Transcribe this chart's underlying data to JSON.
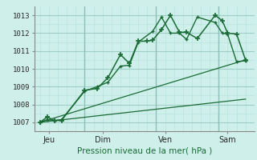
{
  "title": "",
  "xlabel": "Pression niveau de la mer( hPa )",
  "bg_color": "#cff0ea",
  "grid_color_minor": "#b8e4de",
  "grid_color_major": "#9ecec8",
  "line_color": "#1a6b35",
  "ylim": [
    1006.5,
    1013.5
  ],
  "xlim": [
    -0.3,
    12.0
  ],
  "xtick_labels": [
    "Jeu",
    "Dim",
    "Ven",
    "Sam"
  ],
  "xtick_positions": [
    0.5,
    3.5,
    7.0,
    10.5
  ],
  "vline_positions": [
    2.5,
    6.5,
    10.0
  ],
  "ytick_labels": [
    "1007",
    "1008",
    "1009",
    "1010",
    "1011",
    "1012",
    "1013"
  ],
  "ytick_values": [
    1007,
    1008,
    1009,
    1010,
    1011,
    1012,
    1013
  ],
  "series1_x": [
    0,
    0.4,
    0.8,
    1.2,
    2.5,
    3.2,
    3.8,
    4.5,
    5.0,
    5.5,
    6.0,
    6.3,
    6.8,
    7.3,
    7.8,
    8.2,
    8.8,
    9.8,
    10.2,
    10.5,
    11.0,
    11.5
  ],
  "series1_y": [
    1007.0,
    1007.3,
    1007.1,
    1007.1,
    1008.8,
    1008.9,
    1009.5,
    1010.8,
    1010.3,
    1011.55,
    1011.55,
    1011.6,
    1012.2,
    1013.0,
    1012.05,
    1012.05,
    1011.7,
    1013.0,
    1012.7,
    1012.0,
    1011.95,
    1010.5
  ],
  "series2_x": [
    0,
    0.4,
    0.8,
    1.2,
    2.5,
    3.2,
    3.8,
    4.5,
    5.0,
    5.5,
    6.3,
    6.8,
    7.3,
    7.8,
    8.2,
    8.8,
    9.8,
    10.2,
    10.5,
    11.0,
    11.5
  ],
  "series2_y": [
    1007.0,
    1007.15,
    1007.1,
    1007.15,
    1008.75,
    1009.0,
    1009.25,
    1010.15,
    1010.2,
    1011.5,
    1012.1,
    1012.9,
    1012.0,
    1012.0,
    1011.65,
    1012.9,
    1012.6,
    1012.0,
    1011.95,
    1010.4,
    1010.45
  ],
  "series3_x": [
    0,
    11.5
  ],
  "series3_y": [
    1007.0,
    1010.5
  ],
  "series4_x": [
    0,
    11.5
  ],
  "series4_y": [
    1007.0,
    1008.3
  ]
}
